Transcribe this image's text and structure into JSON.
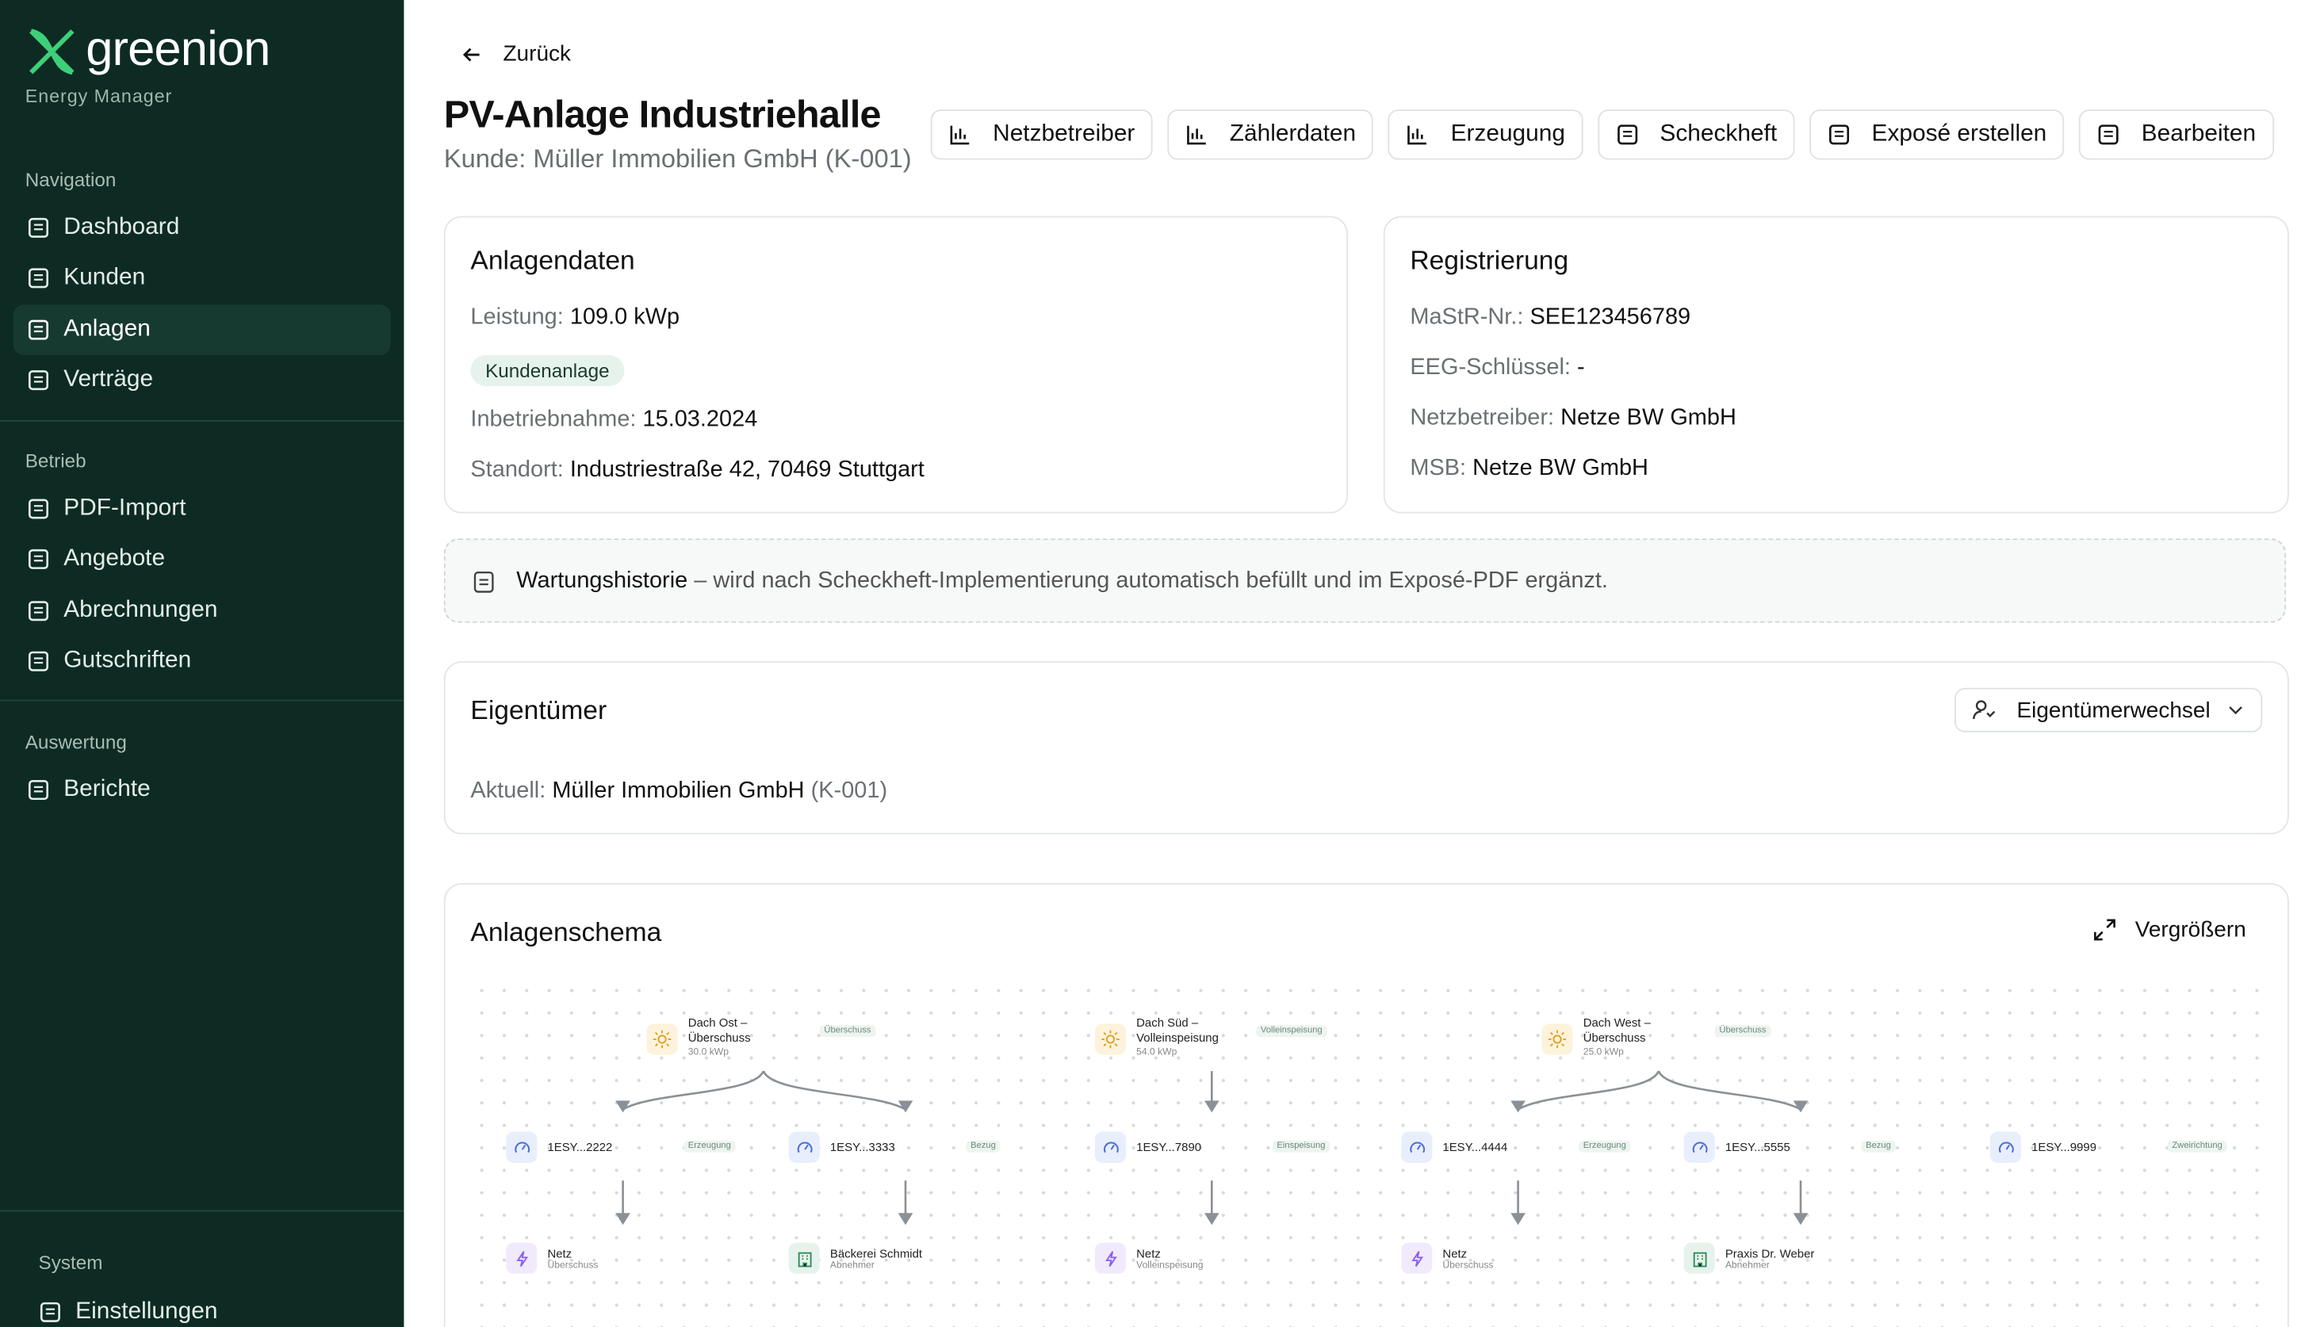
{
  "sidebar": {
    "brand": "greenion",
    "tagline": "Energy Manager",
    "sections": [
      {
        "title": "Navigation",
        "items": [
          {
            "label": "Dashboard"
          },
          {
            "label": "Kunden"
          },
          {
            "label": "Anlagen",
            "active": true
          },
          {
            "label": "Verträge"
          }
        ]
      },
      {
        "title": "Betrieb",
        "items": [
          {
            "label": "PDF-Import"
          },
          {
            "label": "Angebote"
          },
          {
            "label": "Abrechnungen"
          },
          {
            "label": "Gutschriften"
          }
        ]
      },
      {
        "title": "Auswertung",
        "items": [
          {
            "label": "Berichte"
          }
        ]
      }
    ],
    "footer": {
      "title": "System",
      "items": [
        {
          "label": "Einstellungen"
        }
      ]
    }
  },
  "header": {
    "back": "Zurück",
    "title": "PV-Anlage Industriehalle",
    "subtitle": "Kunde: Müller Immobilien GmbH (K-001)",
    "buttons": [
      "Netzbetreiber",
      "Zählerdaten",
      "Erzeugung",
      "Scheckheft",
      "Exposé erstellen",
      "Bearbeiten"
    ]
  },
  "anlagendaten": {
    "title": "Anlagendaten",
    "leistung": {
      "label": "Leistung:",
      "value": "109.0 kWp"
    },
    "badge": "Kundenanlage",
    "fields": [
      {
        "label": "Inbetriebnahme:",
        "value": "15.03.2024"
      },
      {
        "label": "Standort:",
        "value": "Industriestraße 42, 70469 Stuttgart"
      }
    ]
  },
  "registrierung": {
    "title": "Registrierung",
    "fields": [
      {
        "label": "MaStR-Nr.:",
        "value": "SEE123456789"
      },
      {
        "label": "EEG-Schlüssel:",
        "value": "-"
      },
      {
        "label": "Netzbetreiber:",
        "value": "Netze BW GmbH"
      },
      {
        "label": "MSB:",
        "value": "Netze BW GmbH"
      }
    ]
  },
  "notice": {
    "title": "Wartungshistorie",
    "text": " – wird nach Scheckheft-Implementierung automatisch befüllt und im Exposé-PDF ergänzt."
  },
  "owner": {
    "title": "Eigentümer",
    "button": "Eigentümerwechsel",
    "label": "Aktuell:",
    "name": "Müller Immobilien GmbH",
    "id": "(K-001)"
  },
  "schema": {
    "title": "Anlagenschema",
    "expand": "Vergrößern",
    "sources": [
      {
        "name": "Dach Ost – Überschuss",
        "sub": "30.0 kWp",
        "tag": "Überschuss"
      },
      {
        "name": "Dach Süd – Volleinspeisung",
        "sub": "54.0 kWp",
        "tag": "Volleinspeisung"
      },
      {
        "name": "Dach West – Überschuss",
        "sub": "25.0 kWp",
        "tag": "Überschuss"
      }
    ],
    "meters": [
      {
        "name": "1ESY...2222",
        "tag": "Erzeugung"
      },
      {
        "name": "1ESY...3333",
        "tag": "Bezug"
      },
      {
        "name": "1ESY...7890",
        "tag": "Einspeisung"
      },
      {
        "name": "1ESY...4444",
        "tag": "Erzeugung"
      },
      {
        "name": "1ESY...5555",
        "tag": "Bezug"
      },
      {
        "name": "1ESY...9999",
        "tag": "Zweirichtung"
      }
    ],
    "targets": [
      {
        "name": "Netz",
        "sub": "Überschuss",
        "kind": "grid"
      },
      {
        "name": "Bäckerei Schmidt",
        "sub": "Abnehmer",
        "kind": "building"
      },
      {
        "name": "Netz",
        "sub": "Volleinspeisung",
        "kind": "grid"
      },
      {
        "name": "Netz",
        "sub": "Überschuss",
        "kind": "grid"
      },
      {
        "name": "Praxis Dr. Weber",
        "sub": "Abnehmer",
        "kind": "building"
      }
    ]
  }
}
